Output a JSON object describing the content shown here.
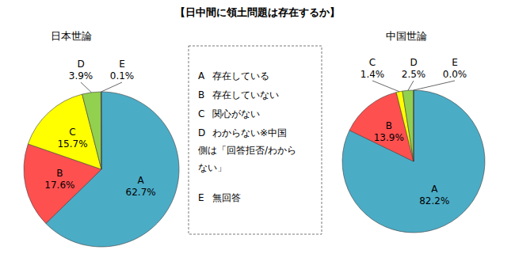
{
  "title": "【日中間に領土問題は存在するか】",
  "chart_data": [
    {
      "type": "pie",
      "title": "日本世論",
      "categories": [
        "A",
        "B",
        "C",
        "D",
        "E"
      ],
      "values": [
        62.7,
        17.6,
        15.7,
        3.9,
        0.1
      ],
      "value_labels": [
        "62.7%",
        "17.6%",
        "15.7%",
        "3.9%",
        "0.1%"
      ],
      "colors": [
        "#4bacc6",
        "#ff5050",
        "#ffff00",
        "#92d050",
        "#77933c"
      ],
      "data_labels": true
    },
    {
      "type": "pie",
      "title": "中国世論",
      "categories": [
        "A",
        "B",
        "C",
        "D",
        "E"
      ],
      "values": [
        82.2,
        13.9,
        1.4,
        2.5,
        0.0
      ],
      "value_labels": [
        "82.2%",
        "13.9%",
        "1.4%",
        "2.5%",
        "0.0%"
      ],
      "colors": [
        "#4bacc6",
        "#ff5050",
        "#ffff00",
        "#92d050",
        "#77933c"
      ],
      "data_labels": true
    }
  ],
  "legend_box": {
    "items": [
      {
        "key": "A",
        "lines": [
          "存在している"
        ]
      },
      {
        "key": "B",
        "lines": [
          "存在していない"
        ]
      },
      {
        "key": "C",
        "lines": [
          "関心がない"
        ]
      },
      {
        "key": "D",
        "lines": [
          "わからない※中国",
          "側は「回答拒否/わから",
          "ない」"
        ]
      },
      {
        "key": "E",
        "lines": [
          "無回答"
        ]
      }
    ]
  }
}
